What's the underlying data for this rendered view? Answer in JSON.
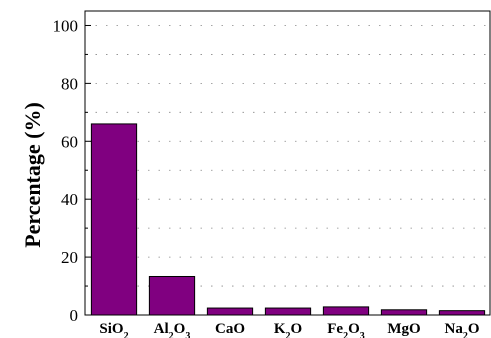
{
  "chart_data": {
    "type": "bar",
    "title": "",
    "xlabel": "",
    "ylabel": "Percentage (%)",
    "categories": [
      {
        "base": "SiO",
        "sub": "2",
        "tail": ""
      },
      {
        "base": "Al",
        "sub": "2",
        "tail": "O",
        "sub2": "3"
      },
      {
        "base": "CaO",
        "sub": "",
        "tail": ""
      },
      {
        "base": "K",
        "sub": "2",
        "tail": "O"
      },
      {
        "base": "Fe",
        "sub": "2",
        "tail": "O",
        "sub2": "3"
      },
      {
        "base": "MgO",
        "sub": "",
        "tail": ""
      },
      {
        "base": "Na",
        "sub": "2",
        "tail": "O"
      }
    ],
    "values": [
      66,
      13.3,
      2.4,
      2.4,
      2.8,
      1.8,
      1.5
    ],
    "ylim": [
      0,
      105
    ],
    "yticks": [
      0,
      20,
      40,
      60,
      80,
      100
    ],
    "grid": "dotted horizontal",
    "bar_color": "#800080"
  }
}
